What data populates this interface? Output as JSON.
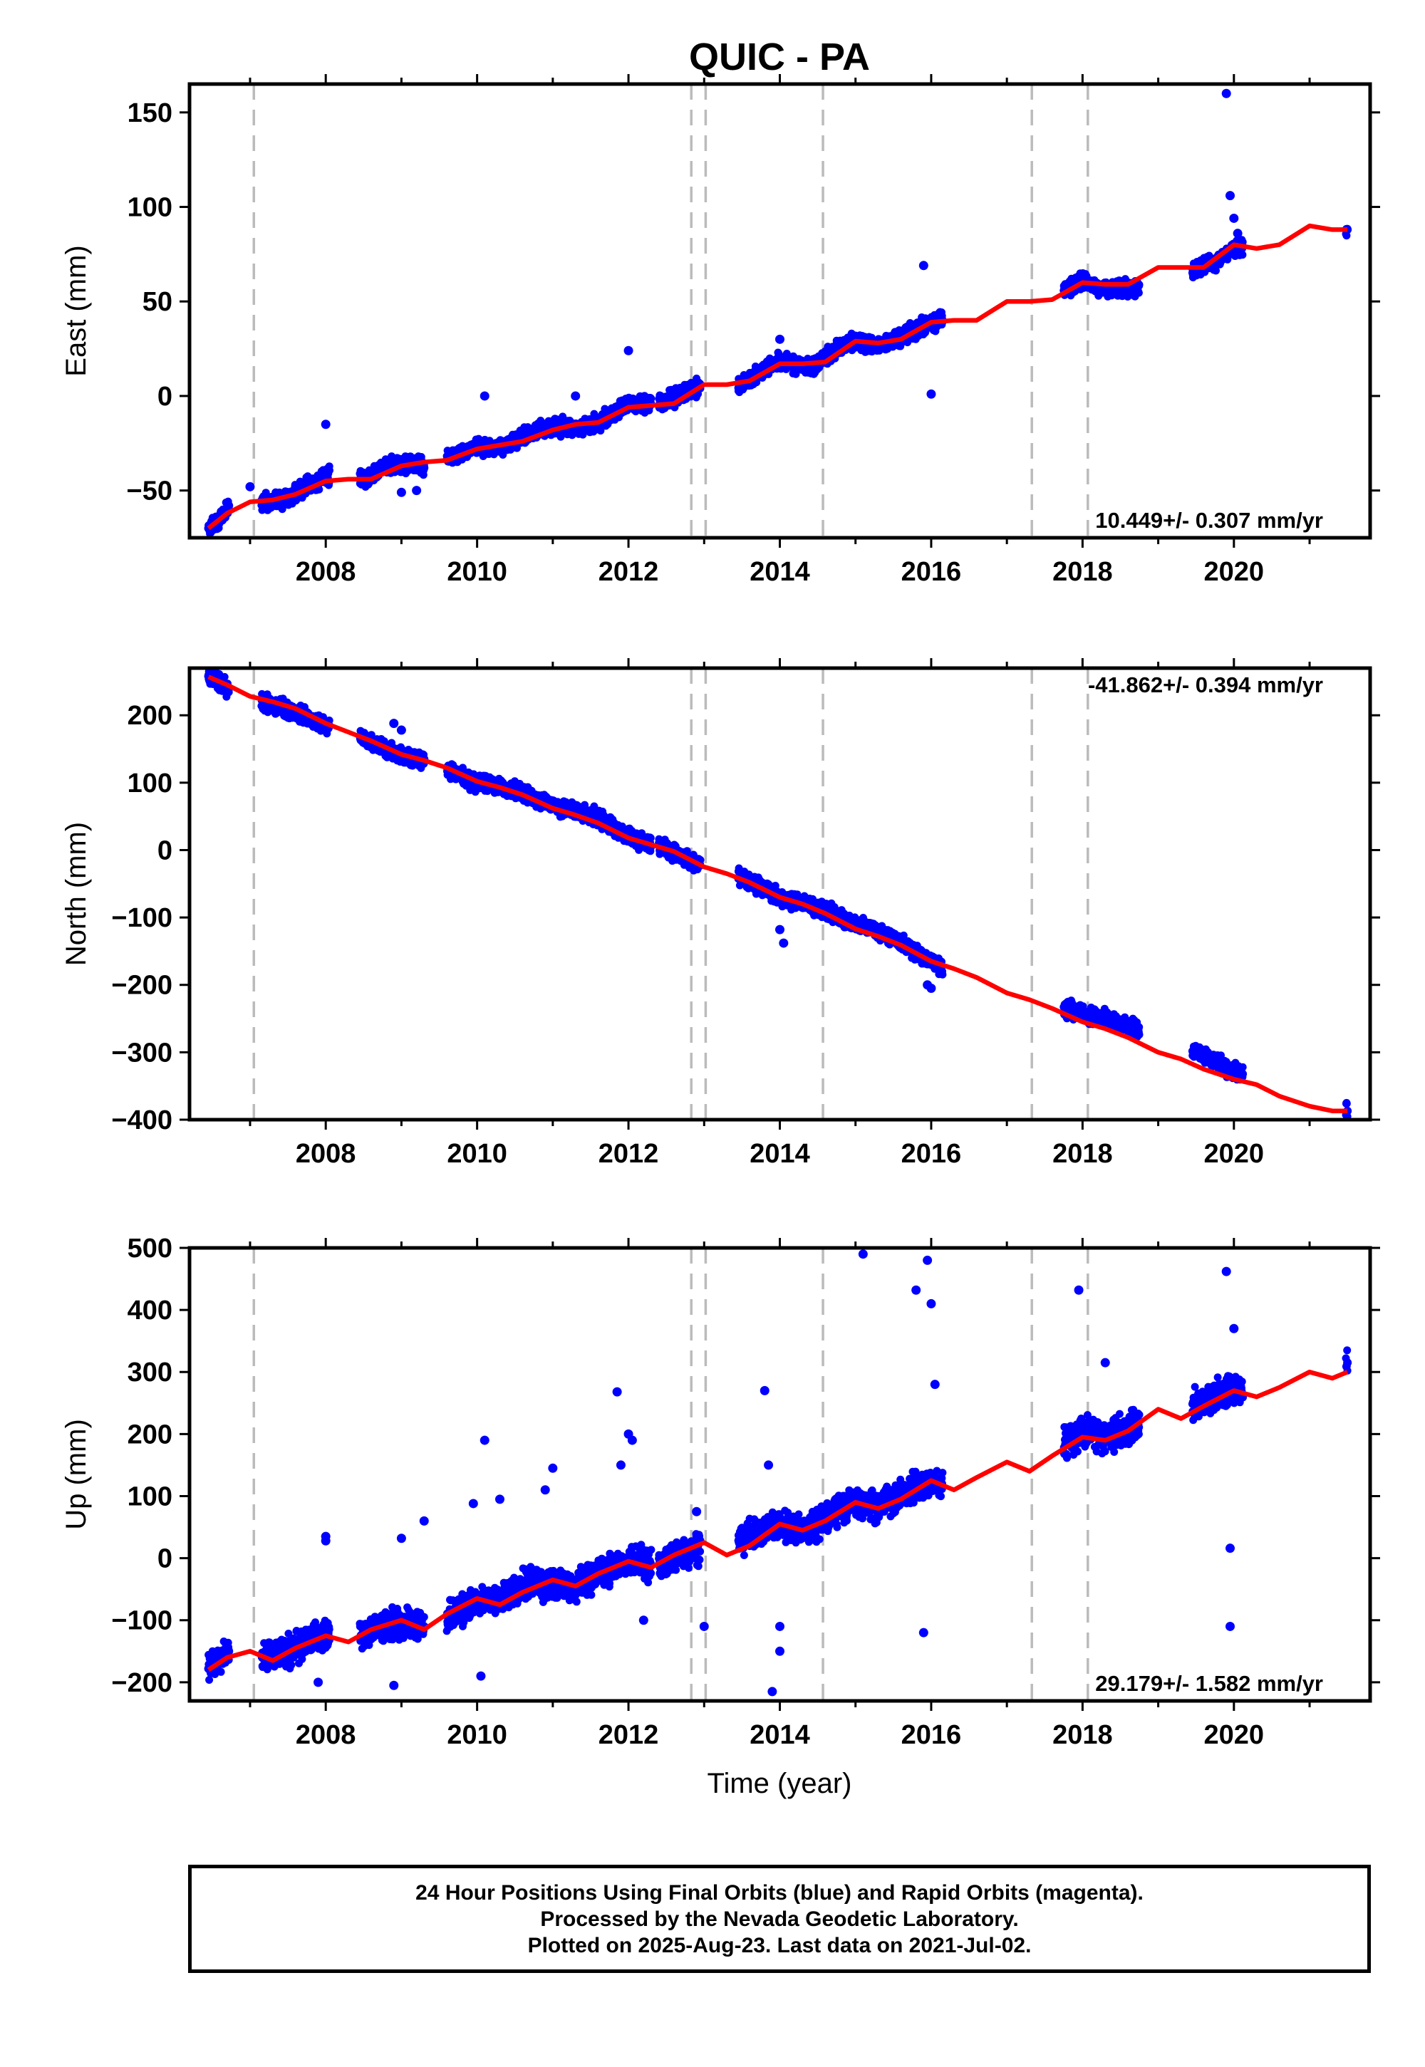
{
  "title": "QUIC - PA",
  "x_axis_title": "Time (year)",
  "colors": {
    "data": "#0000ff",
    "model": "#ff0000",
    "breaks": "#bbbbbb",
    "frame": "#000000"
  },
  "chart_data": [
    {
      "type": "scatter",
      "component": "East",
      "ylabel": "East (mm)",
      "xlim": [
        2006.2,
        2021.8
      ],
      "ylim": [
        -75,
        165
      ],
      "yticks": [
        -50,
        0,
        50,
        100,
        150
      ],
      "xticks": [
        2008,
        2010,
        2012,
        2014,
        2016,
        2018,
        2020
      ],
      "rate_label": "10.449+/- 0.307 mm/yr",
      "rate_position": "bottom-right",
      "break_years": [
        2007.05,
        2012.83,
        2013.02,
        2014.57,
        2017.33,
        2018.07
      ],
      "data_spans": [
        [
          2006.45,
          2006.72
        ],
        [
          2007.15,
          2008.05
        ],
        [
          2008.45,
          2009.3
        ],
        [
          2009.6,
          2010.3
        ],
        [
          2010.3,
          2011.55
        ],
        [
          2011.55,
          2012.3
        ],
        [
          2012.4,
          2012.95
        ],
        [
          2013.45,
          2014.55
        ],
        [
          2014.55,
          2016.15
        ],
        [
          2017.75,
          2018.75
        ],
        [
          2019.45,
          2020.12
        ],
        [
          2021.48,
          2021.5
        ]
      ],
      "series": [
        {
          "name": "Final Orbits",
          "x": [
            2006.45,
            2006.6,
            2006.72,
            2007.2,
            2007.5,
            2007.8,
            2008.0,
            2008.5,
            2008.8,
            2009.1,
            2009.3,
            2009.7,
            2010.0,
            2010.3,
            2010.7,
            2011.0,
            2011.3,
            2011.6,
            2012.0,
            2012.2,
            2012.5,
            2012.9,
            2013.5,
            2013.8,
            2014.0,
            2014.4,
            2014.8,
            2015.0,
            2015.3,
            2015.6,
            2015.9,
            2016.1,
            2017.8,
            2018.0,
            2018.3,
            2018.6,
            2019.5,
            2019.8,
            2020.0,
            2021.5
          ],
          "y": [
            -70,
            -65,
            -58,
            -56,
            -54,
            -47,
            -42,
            -44,
            -37,
            -36,
            -38,
            -32,
            -26,
            -27,
            -20,
            -16,
            -17,
            -14,
            -4,
            -4,
            -3,
            5,
            6,
            14,
            19,
            15,
            26,
            29,
            26,
            31,
            37,
            40,
            57,
            61,
            56,
            57,
            67,
            72,
            78,
            88
          ]
        }
      ],
      "outliers": {
        "x": [
          2007.0,
          2008.0,
          2009.0,
          2009.2,
          2010.1,
          2011.3,
          2012.0,
          2014.0,
          2015.9,
          2016.0,
          2019.9,
          2019.95,
          2020.0,
          2020.05
        ],
        "y": [
          -48,
          -15,
          -51,
          -50,
          0,
          0,
          24,
          30,
          69,
          1,
          160,
          106,
          94,
          86
        ]
      },
      "model": {
        "name": "Model",
        "x": [
          2006.45,
          2006.7,
          2007.0,
          2007.3,
          2007.6,
          2008.0,
          2008.3,
          2008.6,
          2009.0,
          2009.3,
          2009.6,
          2010.0,
          2010.3,
          2010.6,
          2011.0,
          2011.3,
          2011.6,
          2012.0,
          2012.3,
          2012.6,
          2013.0,
          2013.3,
          2013.6,
          2014.0,
          2014.3,
          2014.6,
          2015.0,
          2015.3,
          2015.6,
          2016.0,
          2016.3,
          2016.6,
          2017.0,
          2017.3,
          2017.6,
          2018.0,
          2018.3,
          2018.6,
          2019.0,
          2019.3,
          2019.6,
          2020.0,
          2020.3,
          2020.6,
          2021.0,
          2021.3,
          2021.5
        ],
        "y": [
          -70,
          -62,
          -56,
          -55,
          -52,
          -45,
          -44,
          -44,
          -37,
          -35,
          -34,
          -28,
          -26,
          -24,
          -18,
          -15,
          -14,
          -6,
          -5,
          -4,
          6,
          6,
          8,
          17,
          17,
          18,
          29,
          28,
          30,
          39,
          40,
          40,
          50,
          50,
          51,
          60,
          59,
          59,
          68,
          68,
          68,
          80,
          78,
          80,
          90,
          88,
          88
        ]
      }
    },
    {
      "type": "scatter",
      "component": "North",
      "ylabel": "North (mm)",
      "xlim": [
        2006.2,
        2021.8
      ],
      "ylim": [
        -400,
        270
      ],
      "yticks": [
        -400,
        -300,
        -200,
        -100,
        0,
        100,
        200
      ],
      "xticks": [
        2008,
        2010,
        2012,
        2014,
        2016,
        2018,
        2020
      ],
      "rate_label": "-41.862+/- 0.394 mm/yr",
      "rate_position": "top-right",
      "break_years": [
        2007.05,
        2012.83,
        2013.02,
        2014.57,
        2017.33,
        2018.07
      ],
      "data_spans": [
        [
          2006.45,
          2006.72
        ],
        [
          2007.15,
          2008.05
        ],
        [
          2008.45,
          2009.3
        ],
        [
          2009.6,
          2010.3
        ],
        [
          2010.3,
          2011.55
        ],
        [
          2011.55,
          2012.3
        ],
        [
          2012.4,
          2012.95
        ],
        [
          2013.45,
          2014.55
        ],
        [
          2014.55,
          2016.15
        ],
        [
          2017.75,
          2018.75
        ],
        [
          2019.45,
          2020.12
        ],
        [
          2021.48,
          2021.5
        ]
      ],
      "series": [
        {
          "name": "Final Orbits",
          "x": [
            2006.45,
            2006.6,
            2006.72,
            2007.2,
            2007.5,
            2007.8,
            2008.0,
            2008.5,
            2008.8,
            2009.1,
            2009.3,
            2009.7,
            2010.0,
            2010.3,
            2010.7,
            2011.0,
            2011.3,
            2011.6,
            2012.0,
            2012.2,
            2012.5,
            2012.9,
            2013.5,
            2013.8,
            2014.0,
            2014.4,
            2014.8,
            2015.0,
            2015.3,
            2015.6,
            2015.9,
            2016.1,
            2017.8,
            2018.0,
            2018.3,
            2018.6,
            2019.5,
            2019.8,
            2020.0,
            2021.5
          ],
          "y": [
            258,
            250,
            240,
            218,
            208,
            195,
            184,
            165,
            148,
            138,
            135,
            115,
            100,
            96,
            80,
            65,
            60,
            48,
            20,
            12,
            2,
            -20,
            -42,
            -58,
            -72,
            -80,
            -100,
            -110,
            -120,
            -135,
            -160,
            -170,
            -235,
            -242,
            -250,
            -260,
            -300,
            -315,
            -330,
            -387
          ]
        }
      ],
      "outliers": {
        "x": [
          2008.9,
          2009.0,
          2014.0,
          2014.05,
          2015.95,
          2016.0
        ],
        "y": [
          188,
          178,
          -118,
          -138,
          -200,
          -205
        ]
      },
      "model": {
        "name": "Model",
        "x": [
          2006.45,
          2006.7,
          2007.0,
          2007.3,
          2007.6,
          2008.0,
          2008.3,
          2008.6,
          2009.0,
          2009.3,
          2009.6,
          2010.0,
          2010.3,
          2010.6,
          2011.0,
          2011.3,
          2011.6,
          2012.0,
          2012.3,
          2012.6,
          2013.0,
          2013.3,
          2013.6,
          2014.0,
          2014.3,
          2014.6,
          2015.0,
          2015.3,
          2015.6,
          2016.0,
          2016.3,
          2016.6,
          2017.0,
          2017.3,
          2017.6,
          2018.0,
          2018.3,
          2018.6,
          2019.0,
          2019.3,
          2019.6,
          2020.0,
          2020.3,
          2020.6,
          2021.0,
          2021.3,
          2021.5
        ],
        "y": [
          257,
          245,
          228,
          220,
          210,
          188,
          175,
          162,
          142,
          133,
          122,
          102,
          93,
          82,
          62,
          52,
          40,
          18,
          8,
          -2,
          -25,
          -35,
          -48,
          -70,
          -80,
          -94,
          -117,
          -128,
          -141,
          -165,
          -176,
          -189,
          -212,
          -222,
          -235,
          -255,
          -265,
          -278,
          -300,
          -310,
          -325,
          -340,
          -348,
          -365,
          -380,
          -387,
          -387
        ]
      }
    },
    {
      "type": "scatter",
      "component": "Up",
      "ylabel": "Up (mm)",
      "xlim": [
        2006.2,
        2021.8
      ],
      "ylim": [
        -230,
        500
      ],
      "yticks": [
        -200,
        -100,
        0,
        100,
        200,
        300,
        400,
        500
      ],
      "xticks": [
        2008,
        2010,
        2012,
        2014,
        2016,
        2018,
        2020
      ],
      "rate_label": "29.179+/- 1.582 mm/yr",
      "rate_position": "bottom-right",
      "break_years": [
        2007.05,
        2012.83,
        2013.02,
        2014.57,
        2017.33,
        2018.07
      ],
      "data_spans": [
        [
          2006.45,
          2006.72
        ],
        [
          2007.15,
          2008.05
        ],
        [
          2008.45,
          2009.3
        ],
        [
          2009.6,
          2010.3
        ],
        [
          2010.3,
          2011.55
        ],
        [
          2011.55,
          2012.3
        ],
        [
          2012.4,
          2012.95
        ],
        [
          2013.45,
          2014.55
        ],
        [
          2014.55,
          2016.15
        ],
        [
          2017.75,
          2018.75
        ],
        [
          2019.45,
          2020.12
        ],
        [
          2021.48,
          2021.5
        ]
      ],
      "series": [
        {
          "name": "Final Orbits",
          "x": [
            2006.45,
            2006.6,
            2006.72,
            2007.2,
            2007.5,
            2007.8,
            2008.0,
            2008.5,
            2008.8,
            2009.1,
            2009.3,
            2009.7,
            2010.0,
            2010.3,
            2010.7,
            2011.0,
            2011.3,
            2011.6,
            2012.0,
            2012.2,
            2012.5,
            2012.9,
            2013.5,
            2013.8,
            2014.0,
            2014.4,
            2014.8,
            2015.0,
            2015.3,
            2015.6,
            2015.9,
            2016.1,
            2017.8,
            2018.0,
            2018.3,
            2018.6,
            2019.5,
            2019.8,
            2020.0,
            2021.5
          ],
          "y": [
            -178,
            -165,
            -150,
            -162,
            -150,
            -130,
            -128,
            -120,
            -108,
            -105,
            -110,
            -90,
            -70,
            -68,
            -40,
            -42,
            -45,
            -25,
            -10,
            -8,
            -5,
            15,
            30,
            48,
            52,
            45,
            78,
            88,
            85,
            100,
            120,
            118,
            190,
            205,
            195,
            210,
            245,
            265,
            270,
            315
          ]
        }
      ],
      "outliers": {
        "x": [
          2007.9,
          2008.0,
          2008.0,
          2008.9,
          2009.0,
          2009.3,
          2009.95,
          2010.05,
          2010.1,
          2010.3,
          2010.9,
          2011.0,
          2011.85,
          2011.9,
          2012.0,
          2012.05,
          2012.2,
          2012.9,
          2013.0,
          2013.8,
          2013.85,
          2013.9,
          2014.0,
          2014.0,
          2015.1,
          2015.8,
          2015.95,
          2016.0,
          2016.05,
          2015.9,
          2017.95,
          2018.3,
          2019.9,
          2019.95,
          2019.95,
          2020.0
        ],
        "y": [
          -200,
          35,
          28,
          -205,
          32,
          60,
          88,
          -190,
          190,
          95,
          110,
          145,
          268,
          150,
          200,
          190,
          -100,
          75,
          -110,
          270,
          150,
          -215,
          -110,
          -150,
          490,
          432,
          480,
          410,
          280,
          -120,
          432,
          315,
          462,
          16,
          -110,
          370
        ]
      },
      "model": {
        "name": "Model",
        "x": [
          2006.45,
          2006.7,
          2007.0,
          2007.3,
          2007.6,
          2008.0,
          2008.3,
          2008.6,
          2009.0,
          2009.3,
          2009.6,
          2010.0,
          2010.3,
          2010.6,
          2011.0,
          2011.3,
          2011.6,
          2012.0,
          2012.3,
          2012.6,
          2013.0,
          2013.3,
          2013.6,
          2014.0,
          2014.3,
          2014.6,
          2015.0,
          2015.3,
          2015.6,
          2016.0,
          2016.3,
          2016.6,
          2017.0,
          2017.3,
          2017.6,
          2018.0,
          2018.3,
          2018.6,
          2019.0,
          2019.3,
          2019.6,
          2020.0,
          2020.3,
          2020.6,
          2021.0,
          2021.3,
          2021.5
        ],
        "y": [
          -180,
          -160,
          -150,
          -165,
          -145,
          -125,
          -135,
          -115,
          -100,
          -115,
          -90,
          -65,
          -75,
          -55,
          -35,
          -45,
          -25,
          -5,
          -15,
          5,
          25,
          5,
          20,
          55,
          45,
          60,
          90,
          80,
          95,
          125,
          110,
          130,
          155,
          140,
          165,
          195,
          190,
          205,
          240,
          225,
          245,
          270,
          260,
          275,
          300,
          290,
          300
        ]
      }
    }
  ],
  "footer": {
    "line1": "24 Hour Positions Using Final Orbits (blue) and Rapid Orbits (magenta).",
    "line2": "Processed by the Nevada Geodetic Laboratory.",
    "line3": "Plotted on 2025-Aug-23. Last data on 2021-Jul-02."
  }
}
